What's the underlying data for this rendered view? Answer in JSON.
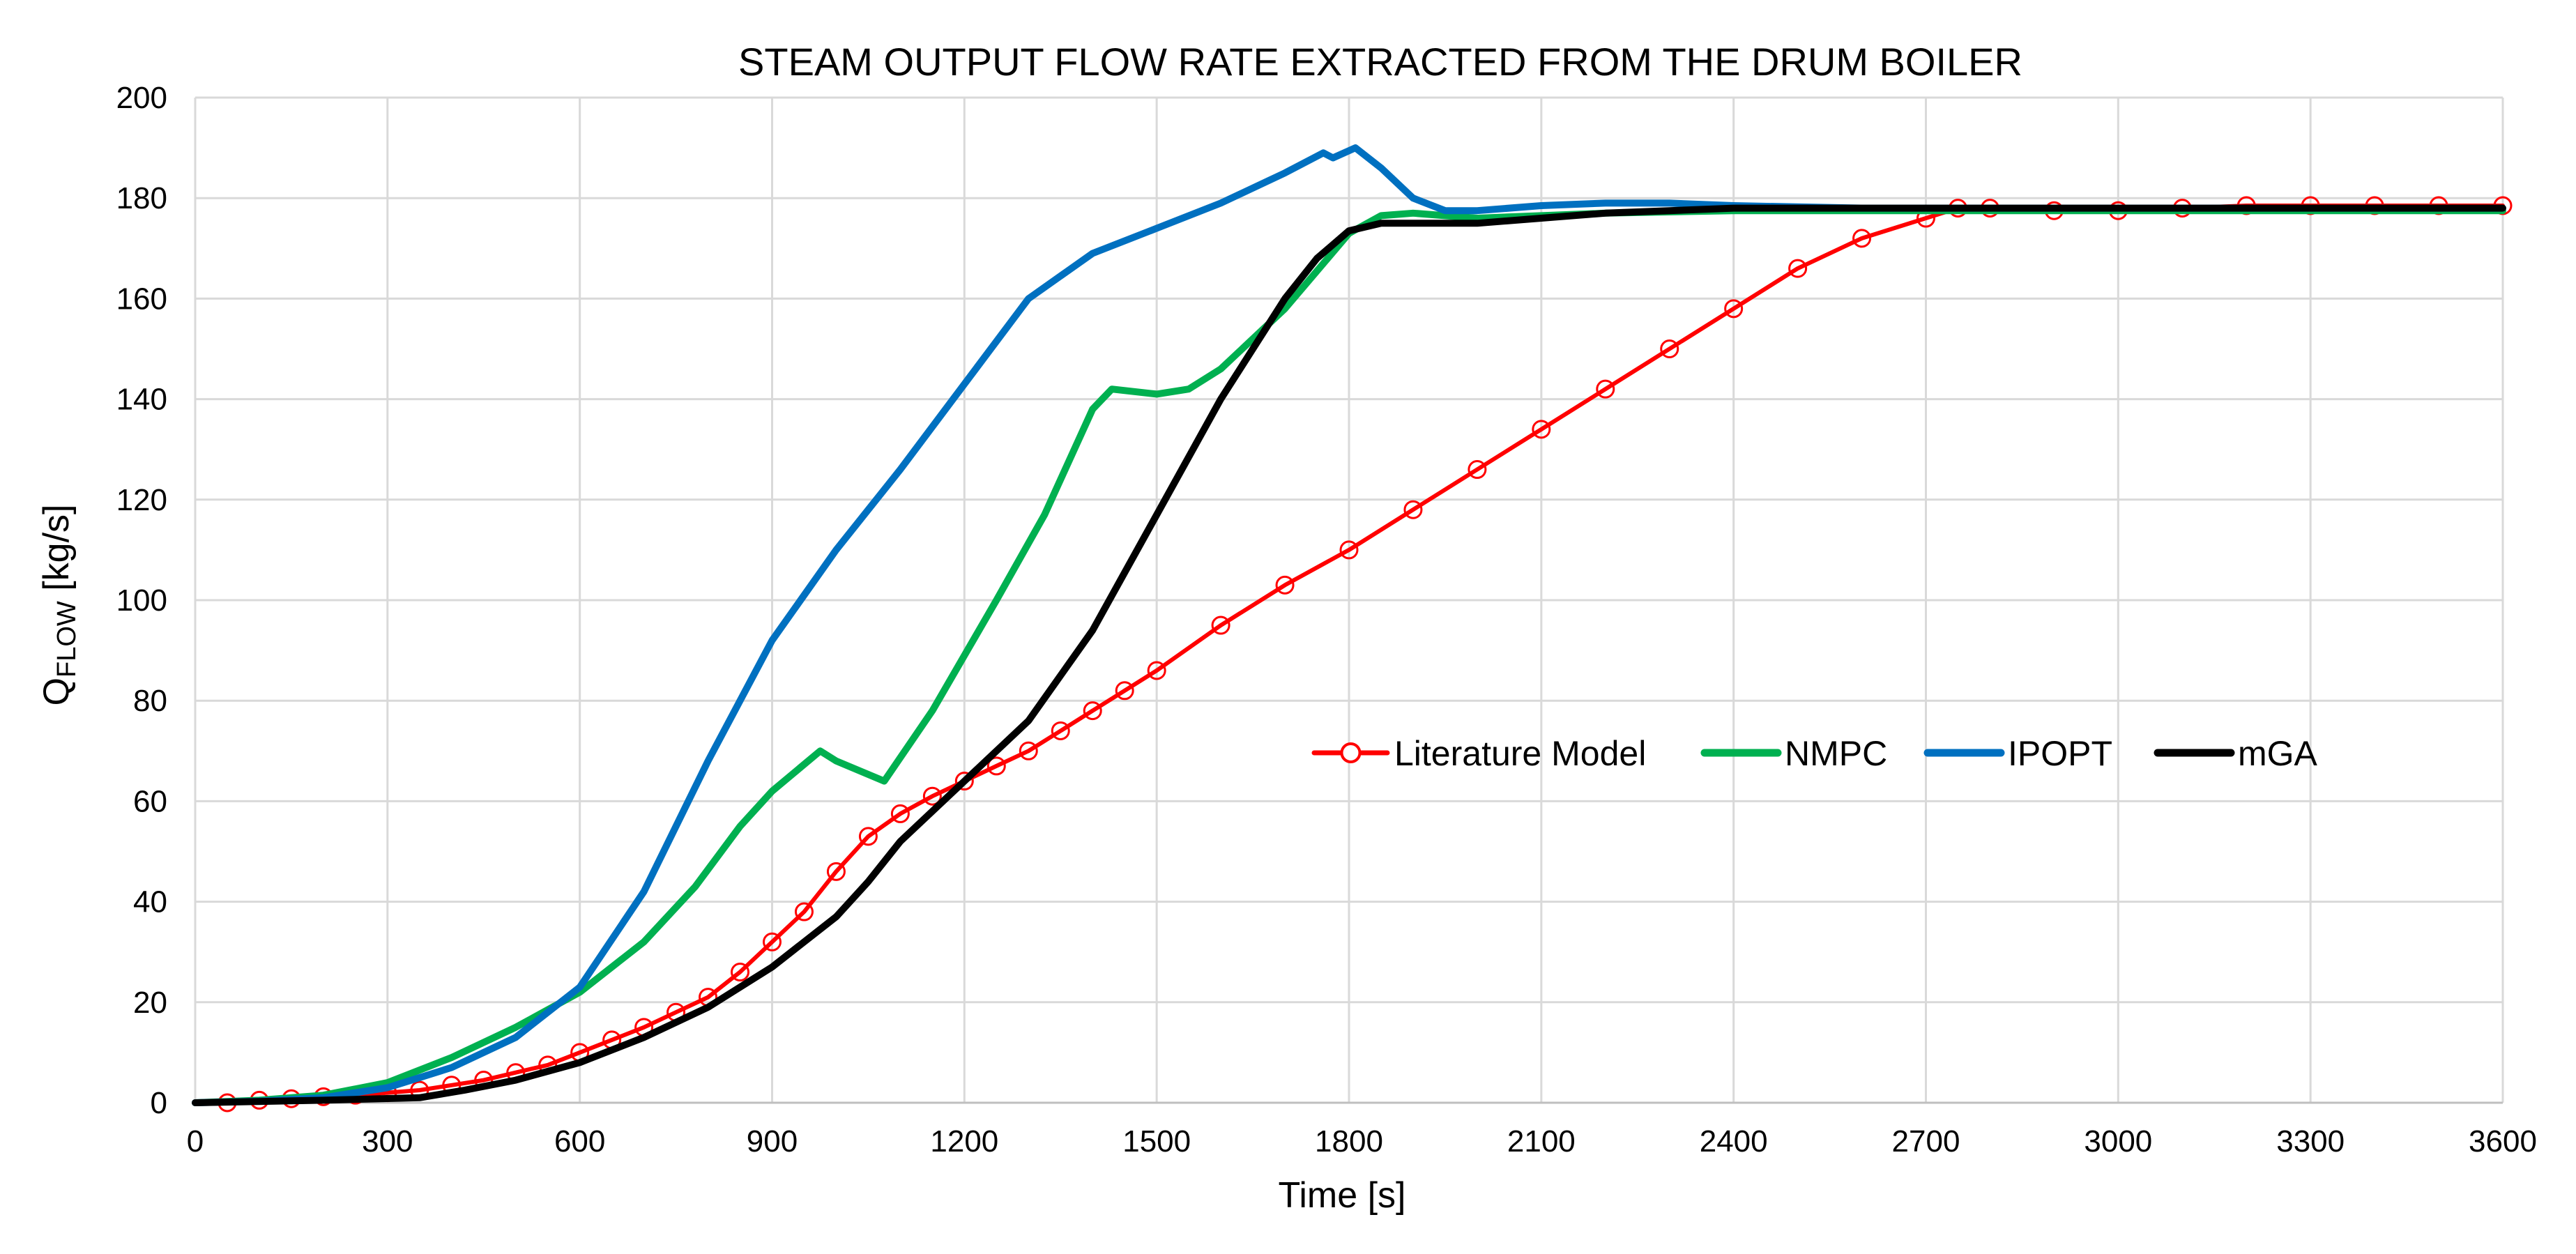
{
  "chart_data": {
    "type": "line",
    "title": "STEAM OUTPUT FLOW RATE EXTRACTED FROM THE DRUM BOILER",
    "xlabel": "Time [s]",
    "ylabel": {
      "main": "Q",
      "subscript": "FLOW",
      "unit": " [kg/s]"
    },
    "xlim": [
      0,
      3600
    ],
    "ylim": [
      0,
      200
    ],
    "x_ticks": [
      0,
      300,
      600,
      900,
      1200,
      1500,
      1800,
      2100,
      2400,
      2700,
      3000,
      3300,
      3600
    ],
    "x_tick_labels": [
      "0",
      "300",
      "600",
      "900",
      "1200",
      "1500",
      "1800",
      "2100",
      "2400",
      "2700",
      "3000",
      "3300",
      "3600"
    ],
    "y_ticks": [
      0,
      20,
      40,
      60,
      80,
      100,
      120,
      140,
      160,
      180,
      200
    ],
    "y_tick_labels": [
      "0",
      "20",
      "40",
      "60",
      "80",
      "100",
      "120",
      "140",
      "160",
      "180",
      "200"
    ],
    "grid": true,
    "legend_position": "center-right",
    "series": [
      {
        "name": "Literature Model",
        "color": "#FF0000",
        "marker": "circle",
        "x": [
          50,
          100,
          150,
          200,
          250,
          300,
          350,
          400,
          450,
          500,
          550,
          600,
          650,
          700,
          750,
          800,
          850,
          900,
          950,
          1000,
          1050,
          1100,
          1150,
          1200,
          1250,
          1300,
          1350,
          1400,
          1450,
          1500,
          1600,
          1700,
          1800,
          1900,
          2000,
          2100,
          2200,
          2300,
          2400,
          2500,
          2600,
          2700,
          2750,
          2800,
          2900,
          3000,
          3100,
          3200,
          3300,
          3400,
          3500,
          3600
        ],
        "y": [
          0,
          0.5,
          0.8,
          1.2,
          1.5,
          2,
          2.5,
          3.5,
          4.5,
          6,
          7.5,
          10,
          12.5,
          15,
          18,
          21,
          26,
          32,
          38,
          46,
          53,
          57.5,
          61,
          64,
          67,
          70,
          74,
          78,
          82,
          86,
          95,
          103,
          110,
          118,
          126,
          134,
          142,
          150,
          158,
          166,
          172,
          176,
          178,
          178,
          177.5,
          177.5,
          178,
          178.5,
          178.5,
          178.5,
          178.5,
          178.5
        ]
      },
      {
        "name": "NMPC",
        "color": "#00B050",
        "marker": "none",
        "x": [
          0,
          100,
          200,
          300,
          400,
          500,
          600,
          700,
          780,
          850,
          900,
          975,
          1000,
          1075,
          1150,
          1250,
          1325,
          1400,
          1430,
          1500,
          1550,
          1600,
          1700,
          1800,
          1850,
          1900,
          2000,
          2100,
          2200,
          2400,
          2800,
          3200,
          3600
        ],
        "y": [
          0,
          0.5,
          1.5,
          4,
          9,
          15,
          22,
          32,
          43,
          55,
          62,
          70,
          68,
          64,
          78,
          100,
          117,
          138,
          142,
          141,
          142,
          146,
          158,
          173,
          176.5,
          177,
          176,
          176.5,
          177,
          177.5,
          177.5,
          177.5,
          177.5
        ]
      },
      {
        "name": "IPOPT",
        "color": "#0070C0",
        "marker": "none",
        "x": [
          0,
          100,
          200,
          300,
          400,
          500,
          600,
          700,
          800,
          900,
          1000,
          1100,
          1200,
          1300,
          1400,
          1500,
          1600,
          1700,
          1760,
          1775,
          1810,
          1850,
          1900,
          1950,
          2000,
          2100,
          2200,
          2300,
          2400,
          2600,
          3000,
          3600
        ],
        "y": [
          0,
          0.3,
          1,
          3,
          7,
          13,
          23,
          42,
          68,
          92,
          110,
          126,
          143,
          160,
          169,
          174,
          179,
          185,
          189,
          188,
          190,
          186,
          180,
          177.5,
          177.5,
          178.5,
          179,
          179,
          178.5,
          178,
          178,
          178
        ]
      },
      {
        "name": "mGA",
        "color": "#000000",
        "marker": "none",
        "x": [
          0,
          200,
          350,
          420,
          500,
          600,
          700,
          800,
          900,
          1000,
          1050,
          1100,
          1200,
          1300,
          1400,
          1500,
          1600,
          1700,
          1750,
          1800,
          1850,
          1900,
          2000,
          2100,
          2200,
          2400,
          2800,
          3200,
          3600
        ],
        "y": [
          0,
          0.5,
          1,
          2.5,
          4.5,
          8,
          13,
          19,
          27,
          37,
          44,
          52,
          64,
          76,
          94,
          117,
          140,
          160,
          168,
          173.5,
          175,
          175,
          175,
          176,
          177,
          178,
          178,
          178,
          178
        ]
      }
    ]
  }
}
